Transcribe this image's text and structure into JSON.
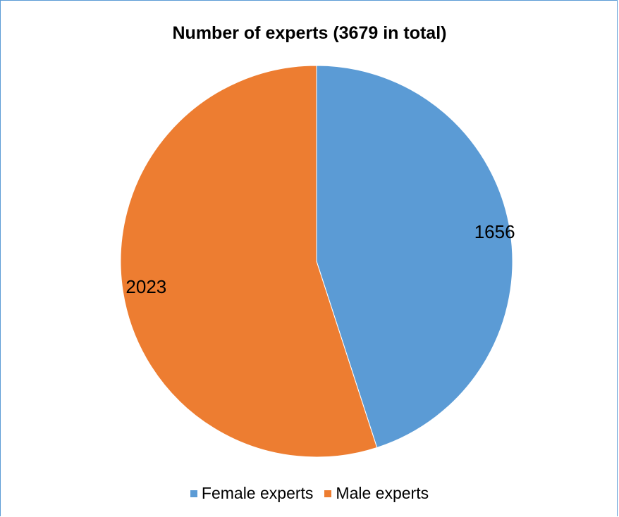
{
  "chart_data": {
    "type": "pie",
    "title": "Number of experts (3679 in total)",
    "categories": [
      "Female experts",
      "Male experts"
    ],
    "values": [
      1656,
      2023
    ],
    "colors": [
      "#5b9bd5",
      "#ed7d31"
    ],
    "data_labels": [
      "1656",
      "2023"
    ],
    "legend_position": "bottom",
    "start_angle": "12 o'clock, clockwise"
  }
}
